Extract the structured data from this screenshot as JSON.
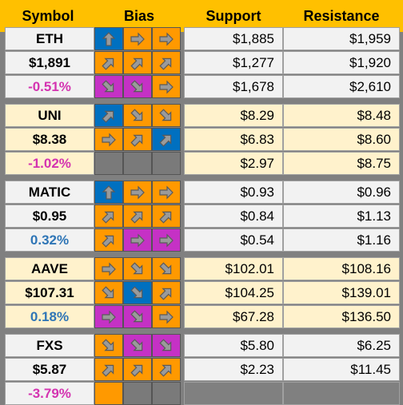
{
  "header": {
    "symbol": "Symbol",
    "bias": "Bias",
    "support": "Support",
    "resistance": "Resistance"
  },
  "colors": {
    "header_bg": "#ffc000",
    "row_white": "#f2f2f2",
    "row_cream": "#fff2cc",
    "bias_orange": "#ff9900",
    "bias_blue": "#0070c0",
    "bias_magenta": "#c531c5",
    "bias_empty": "#7a7a7a",
    "negative_text": "#d433b0",
    "positive_text": "#2e75b6"
  },
  "groups": [
    {
      "theme": "white",
      "rows": [
        {
          "symbol": "ETH",
          "style": "plain",
          "bias": [
            [
              "blue",
              "up"
            ],
            [
              "orange",
              "right"
            ],
            [
              "orange",
              "right"
            ]
          ],
          "support": "$1,885",
          "resistance": "$1,959"
        },
        {
          "symbol": "$1,891",
          "style": "plain",
          "bias": [
            [
              "orange",
              "up-right"
            ],
            [
              "orange",
              "up-right"
            ],
            [
              "orange",
              "up-right"
            ]
          ],
          "support": "$1,277",
          "resistance": "$1,920"
        },
        {
          "symbol": "-0.51%",
          "style": "neg",
          "bias": [
            [
              "magenta",
              "down-right"
            ],
            [
              "magenta",
              "down-right"
            ],
            [
              "orange",
              "right"
            ]
          ],
          "support": "$1,678",
          "resistance": "$2,610"
        }
      ]
    },
    {
      "theme": "cream",
      "rows": [
        {
          "symbol": "UNI",
          "style": "plain",
          "bias": [
            [
              "blue",
              "up-right"
            ],
            [
              "orange",
              "down-right"
            ],
            [
              "orange",
              "down-right"
            ]
          ],
          "support": "$8.29",
          "resistance": "$8.48"
        },
        {
          "symbol": "$8.38",
          "style": "plain",
          "bias": [
            [
              "orange",
              "right"
            ],
            [
              "orange",
              "up-right"
            ],
            [
              "blue",
              "up-right"
            ]
          ],
          "support": "$6.83",
          "resistance": "$8.60"
        },
        {
          "symbol": "-1.02%",
          "style": "neg",
          "bias": [
            [
              "gray",
              "none"
            ],
            [
              "gray",
              "none"
            ],
            [
              "gray",
              "none"
            ]
          ],
          "support": "$2.97",
          "resistance": "$8.75"
        }
      ]
    },
    {
      "theme": "white",
      "rows": [
        {
          "symbol": "MATIC",
          "style": "plain",
          "bias": [
            [
              "blue",
              "up"
            ],
            [
              "orange",
              "right"
            ],
            [
              "orange",
              "right"
            ]
          ],
          "support": "$0.93",
          "resistance": "$0.96"
        },
        {
          "symbol": "$0.95",
          "style": "plain",
          "bias": [
            [
              "orange",
              "up-right"
            ],
            [
              "orange",
              "up-right"
            ],
            [
              "orange",
              "up-right"
            ]
          ],
          "support": "$0.84",
          "resistance": "$1.13"
        },
        {
          "symbol": "0.32%",
          "style": "pos",
          "bias": [
            [
              "orange",
              "up-right"
            ],
            [
              "magenta",
              "right"
            ],
            [
              "magenta",
              "right"
            ]
          ],
          "support": "$0.54",
          "resistance": "$1.16"
        }
      ]
    },
    {
      "theme": "cream",
      "rows": [
        {
          "symbol": "AAVE",
          "style": "plain",
          "bias": [
            [
              "orange",
              "right"
            ],
            [
              "orange",
              "down-right"
            ],
            [
              "orange",
              "down-right"
            ]
          ],
          "support": "$102.01",
          "resistance": "$108.16"
        },
        {
          "symbol": "$107.31",
          "style": "plain",
          "bias": [
            [
              "orange",
              "down-right"
            ],
            [
              "blue",
              "down-right"
            ],
            [
              "orange",
              "up-right"
            ]
          ],
          "support": "$104.25",
          "resistance": "$139.01"
        },
        {
          "symbol": "0.18%",
          "style": "pos",
          "bias": [
            [
              "magenta",
              "right"
            ],
            [
              "magenta",
              "down-right"
            ],
            [
              "orange",
              "right"
            ]
          ],
          "support": "$67.28",
          "resistance": "$136.50"
        }
      ]
    },
    {
      "theme": "white",
      "rows": [
        {
          "symbol": "FXS",
          "style": "plain",
          "bias": [
            [
              "orange",
              "down-right"
            ],
            [
              "magenta",
              "down-right"
            ],
            [
              "magenta",
              "down-right"
            ]
          ],
          "support": "$5.80",
          "resistance": "$6.25"
        },
        {
          "symbol": "$5.87",
          "style": "plain",
          "bias": [
            [
              "orange",
              "up-right"
            ],
            [
              "orange",
              "up-right"
            ],
            [
              "orange",
              "up-right"
            ]
          ],
          "support": "$2.23",
          "resistance": "$11.45"
        },
        {
          "symbol": "-3.79%",
          "style": "neg",
          "bias": [
            [
              "orange",
              "none"
            ],
            [
              "gray",
              "none"
            ],
            [
              "gray",
              "none"
            ]
          ],
          "support": "",
          "resistance": ""
        }
      ]
    }
  ]
}
